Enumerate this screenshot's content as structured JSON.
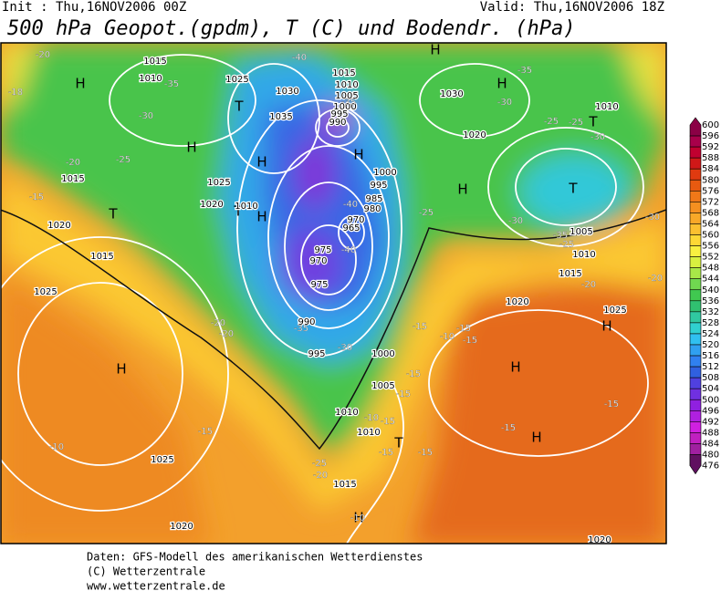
{
  "header": {
    "init": "Init : Thu,16NOV2006 00Z",
    "valid": "Valid: Thu,16NOV2006 18Z",
    "title": "500 hPa Geopot.(gpdm), T (C) und Bodendr. (hPa)"
  },
  "footer": [
    "Daten: GFS-Modell des amerikanischen Wetterdienstes",
    "(C) Wetterzentrale",
    "www.wetterzentrale.de"
  ],
  "colorbar": {
    "values": [
      600,
      596,
      592,
      588,
      584,
      580,
      576,
      572,
      568,
      564,
      560,
      556,
      552,
      548,
      544,
      540,
      536,
      532,
      528,
      524,
      520,
      516,
      512,
      508,
      504,
      500,
      496,
      492,
      488,
      484,
      480,
      476
    ],
    "colors": [
      "#8b0045",
      "#a8004a",
      "#c00030",
      "#d01818",
      "#e03a10",
      "#e85a10",
      "#f07818",
      "#f59020",
      "#f8a828",
      "#fbc030",
      "#fdd835",
      "#f8f040",
      "#d8f040",
      "#a8e848",
      "#70d850",
      "#40c850",
      "#30c070",
      "#30c8a0",
      "#30d0d0",
      "#30c0f0",
      "#30a0f0",
      "#3080f0",
      "#3060e0",
      "#5040e0",
      "#7030e0",
      "#9020e0",
      "#b020e0",
      "#d020e0",
      "#c020c0",
      "#a020a0",
      "#802080",
      "#601060"
    ]
  },
  "map": {
    "labels": [
      "H",
      "H",
      "T",
      "H",
      "T",
      "H",
      "T",
      "H",
      "H",
      "H",
      "T",
      "H",
      "H",
      "H",
      "H",
      "H",
      "T",
      "H",
      "T",
      "1015",
      "1010",
      "1025",
      "1030",
      "1035",
      "1015",
      "1010",
      "1005",
      "1000",
      "995",
      "990",
      "1030",
      "1020",
      "1010",
      "1000",
      "995",
      "985",
      "980",
      "970",
      "965",
      "975",
      "970",
      "975",
      "990",
      "995",
      "1000",
      "1005",
      "1010",
      "1010",
      "1015",
      "1020",
      "1025",
      "1025",
      "1015",
      "1020",
      "1015",
      "1020",
      "1010",
      "1025",
      "1005",
      "1010",
      "1015",
      "1020",
      "1025",
      "1020",
      "-20",
      "-18",
      "-35",
      "-30",
      "-20",
      "-25",
      "-15",
      "-35",
      "-40",
      "-35",
      "-30",
      "-25",
      "-25",
      "-30",
      "-25",
      "-30",
      "-35",
      "-25",
      "-30",
      "-20",
      "-20",
      "-20",
      "-20",
      "-35",
      "-30",
      "-15",
      "-15",
      "-15",
      "-10",
      "-15",
      "-15",
      "-15",
      "-10",
      "-15",
      "-15",
      "-15",
      "-15",
      "-15",
      "-10",
      "-20",
      "-25",
      "-40",
      "-40",
      "-10"
    ]
  }
}
